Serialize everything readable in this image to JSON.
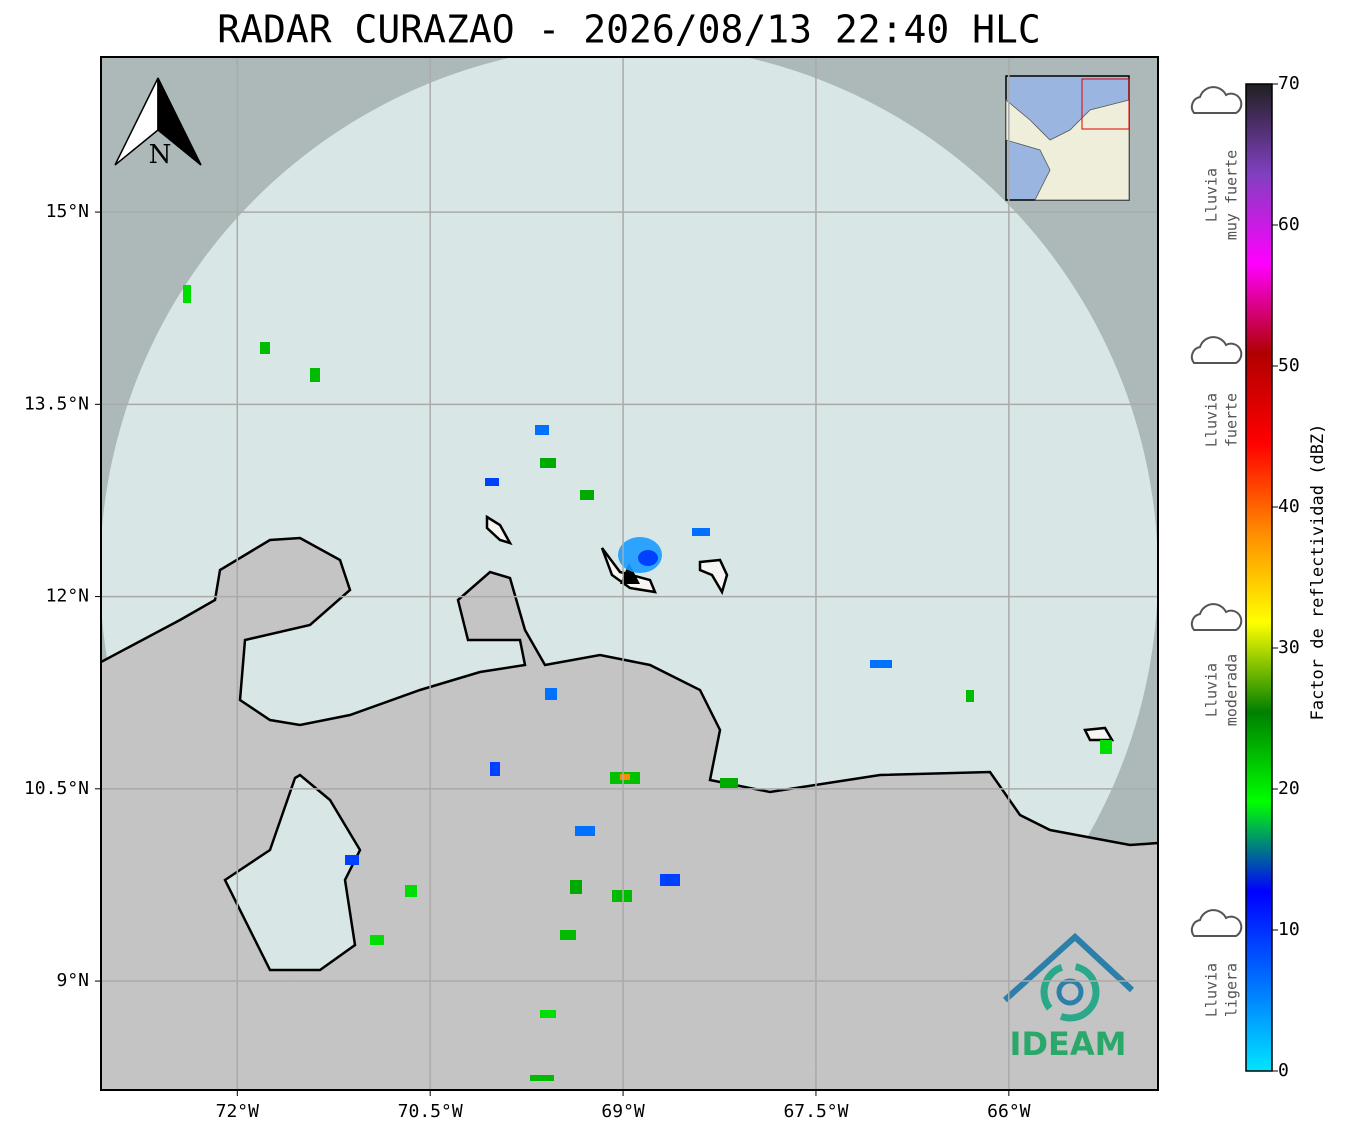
{
  "title": "RADAR CURAZAO - 2026/08/13 22:40 HLC",
  "map": {
    "xlim": [
      -73.06,
      -64.84
    ],
    "ylim": [
      8.15,
      16.21
    ],
    "xticks": [
      {
        "value": -72,
        "label": "72°W"
      },
      {
        "value": -70.5,
        "label": "70.5°W"
      },
      {
        "value": -69,
        "label": "69°W"
      },
      {
        "value": -67.5,
        "label": "67.5°W"
      },
      {
        "value": -66,
        "label": "66°W"
      }
    ],
    "yticks": [
      {
        "value": 9,
        "label": "9°N"
      },
      {
        "value": 10.5,
        "label": "10.5°N"
      },
      {
        "value": 12,
        "label": "12°N"
      },
      {
        "value": 13.5,
        "label": "13.5°N"
      },
      {
        "value": 15,
        "label": "15°N"
      }
    ],
    "grid": true,
    "north": "N"
  },
  "colorbar": {
    "label": "Factor de reflectividad (dBZ)",
    "ylim": [
      0,
      70
    ],
    "ticks": [
      0,
      10,
      20,
      30,
      40,
      50,
      60,
      70
    ],
    "colors": [
      "#00e5ff",
      "#0070ff",
      "#0000ff",
      "#00ff00",
      "#008000",
      "#ffff00",
      "#ff8c00",
      "#ff0000",
      "#b00000",
      "#ff00ff",
      "#8040c0",
      "#202020"
    ]
  },
  "legend": [
    {
      "lines": [
        "Lluvia",
        "muy fuerte"
      ]
    },
    {
      "lines": [
        "Lluvia",
        "fuerte"
      ]
    },
    {
      "lines": [
        "Lluvia",
        "moderada"
      ]
    },
    {
      "lines": [
        "Lluvia",
        "ligera"
      ]
    }
  ],
  "logo": "IDEAM"
}
